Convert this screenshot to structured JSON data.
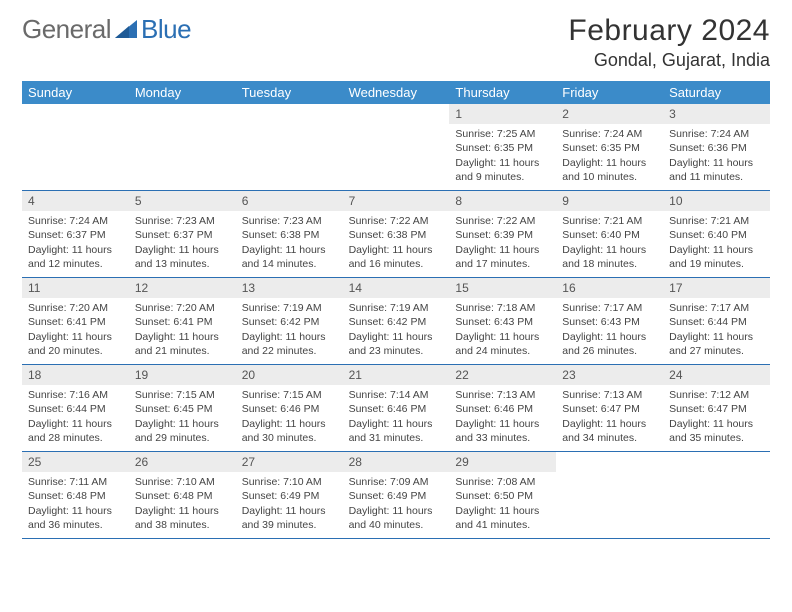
{
  "logo": {
    "part1": "General",
    "part2": "Blue"
  },
  "title": "February 2024",
  "location": "Gondal, Gujarat, India",
  "colors": {
    "header_bg": "#3b8bc9",
    "header_text": "#ffffff",
    "daynum_bg": "#ececec",
    "border": "#2b6fb3",
    "logo_gray": "#6a6a6a",
    "logo_blue": "#2b6fb3"
  },
  "weekdays": [
    "Sunday",
    "Monday",
    "Tuesday",
    "Wednesday",
    "Thursday",
    "Friday",
    "Saturday"
  ],
  "weeks": [
    [
      {
        "empty": true
      },
      {
        "empty": true
      },
      {
        "empty": true
      },
      {
        "empty": true
      },
      {
        "day": "1",
        "sunrise": "Sunrise: 7:25 AM",
        "sunset": "Sunset: 6:35 PM",
        "daylight": "Daylight: 11 hours and 9 minutes."
      },
      {
        "day": "2",
        "sunrise": "Sunrise: 7:24 AM",
        "sunset": "Sunset: 6:35 PM",
        "daylight": "Daylight: 11 hours and 10 minutes."
      },
      {
        "day": "3",
        "sunrise": "Sunrise: 7:24 AM",
        "sunset": "Sunset: 6:36 PM",
        "daylight": "Daylight: 11 hours and 11 minutes."
      }
    ],
    [
      {
        "day": "4",
        "sunrise": "Sunrise: 7:24 AM",
        "sunset": "Sunset: 6:37 PM",
        "daylight": "Daylight: 11 hours and 12 minutes."
      },
      {
        "day": "5",
        "sunrise": "Sunrise: 7:23 AM",
        "sunset": "Sunset: 6:37 PM",
        "daylight": "Daylight: 11 hours and 13 minutes."
      },
      {
        "day": "6",
        "sunrise": "Sunrise: 7:23 AM",
        "sunset": "Sunset: 6:38 PM",
        "daylight": "Daylight: 11 hours and 14 minutes."
      },
      {
        "day": "7",
        "sunrise": "Sunrise: 7:22 AM",
        "sunset": "Sunset: 6:38 PM",
        "daylight": "Daylight: 11 hours and 16 minutes."
      },
      {
        "day": "8",
        "sunrise": "Sunrise: 7:22 AM",
        "sunset": "Sunset: 6:39 PM",
        "daylight": "Daylight: 11 hours and 17 minutes."
      },
      {
        "day": "9",
        "sunrise": "Sunrise: 7:21 AM",
        "sunset": "Sunset: 6:40 PM",
        "daylight": "Daylight: 11 hours and 18 minutes."
      },
      {
        "day": "10",
        "sunrise": "Sunrise: 7:21 AM",
        "sunset": "Sunset: 6:40 PM",
        "daylight": "Daylight: 11 hours and 19 minutes."
      }
    ],
    [
      {
        "day": "11",
        "sunrise": "Sunrise: 7:20 AM",
        "sunset": "Sunset: 6:41 PM",
        "daylight": "Daylight: 11 hours and 20 minutes."
      },
      {
        "day": "12",
        "sunrise": "Sunrise: 7:20 AM",
        "sunset": "Sunset: 6:41 PM",
        "daylight": "Daylight: 11 hours and 21 minutes."
      },
      {
        "day": "13",
        "sunrise": "Sunrise: 7:19 AM",
        "sunset": "Sunset: 6:42 PM",
        "daylight": "Daylight: 11 hours and 22 minutes."
      },
      {
        "day": "14",
        "sunrise": "Sunrise: 7:19 AM",
        "sunset": "Sunset: 6:42 PM",
        "daylight": "Daylight: 11 hours and 23 minutes."
      },
      {
        "day": "15",
        "sunrise": "Sunrise: 7:18 AM",
        "sunset": "Sunset: 6:43 PM",
        "daylight": "Daylight: 11 hours and 24 minutes."
      },
      {
        "day": "16",
        "sunrise": "Sunrise: 7:17 AM",
        "sunset": "Sunset: 6:43 PM",
        "daylight": "Daylight: 11 hours and 26 minutes."
      },
      {
        "day": "17",
        "sunrise": "Sunrise: 7:17 AM",
        "sunset": "Sunset: 6:44 PM",
        "daylight": "Daylight: 11 hours and 27 minutes."
      }
    ],
    [
      {
        "day": "18",
        "sunrise": "Sunrise: 7:16 AM",
        "sunset": "Sunset: 6:44 PM",
        "daylight": "Daylight: 11 hours and 28 minutes."
      },
      {
        "day": "19",
        "sunrise": "Sunrise: 7:15 AM",
        "sunset": "Sunset: 6:45 PM",
        "daylight": "Daylight: 11 hours and 29 minutes."
      },
      {
        "day": "20",
        "sunrise": "Sunrise: 7:15 AM",
        "sunset": "Sunset: 6:46 PM",
        "daylight": "Daylight: 11 hours and 30 minutes."
      },
      {
        "day": "21",
        "sunrise": "Sunrise: 7:14 AM",
        "sunset": "Sunset: 6:46 PM",
        "daylight": "Daylight: 11 hours and 31 minutes."
      },
      {
        "day": "22",
        "sunrise": "Sunrise: 7:13 AM",
        "sunset": "Sunset: 6:46 PM",
        "daylight": "Daylight: 11 hours and 33 minutes."
      },
      {
        "day": "23",
        "sunrise": "Sunrise: 7:13 AM",
        "sunset": "Sunset: 6:47 PM",
        "daylight": "Daylight: 11 hours and 34 minutes."
      },
      {
        "day": "24",
        "sunrise": "Sunrise: 7:12 AM",
        "sunset": "Sunset: 6:47 PM",
        "daylight": "Daylight: 11 hours and 35 minutes."
      }
    ],
    [
      {
        "day": "25",
        "sunrise": "Sunrise: 7:11 AM",
        "sunset": "Sunset: 6:48 PM",
        "daylight": "Daylight: 11 hours and 36 minutes."
      },
      {
        "day": "26",
        "sunrise": "Sunrise: 7:10 AM",
        "sunset": "Sunset: 6:48 PM",
        "daylight": "Daylight: 11 hours and 38 minutes."
      },
      {
        "day": "27",
        "sunrise": "Sunrise: 7:10 AM",
        "sunset": "Sunset: 6:49 PM",
        "daylight": "Daylight: 11 hours and 39 minutes."
      },
      {
        "day": "28",
        "sunrise": "Sunrise: 7:09 AM",
        "sunset": "Sunset: 6:49 PM",
        "daylight": "Daylight: 11 hours and 40 minutes."
      },
      {
        "day": "29",
        "sunrise": "Sunrise: 7:08 AM",
        "sunset": "Sunset: 6:50 PM",
        "daylight": "Daylight: 11 hours and 41 minutes."
      },
      {
        "empty": true
      },
      {
        "empty": true
      }
    ]
  ]
}
